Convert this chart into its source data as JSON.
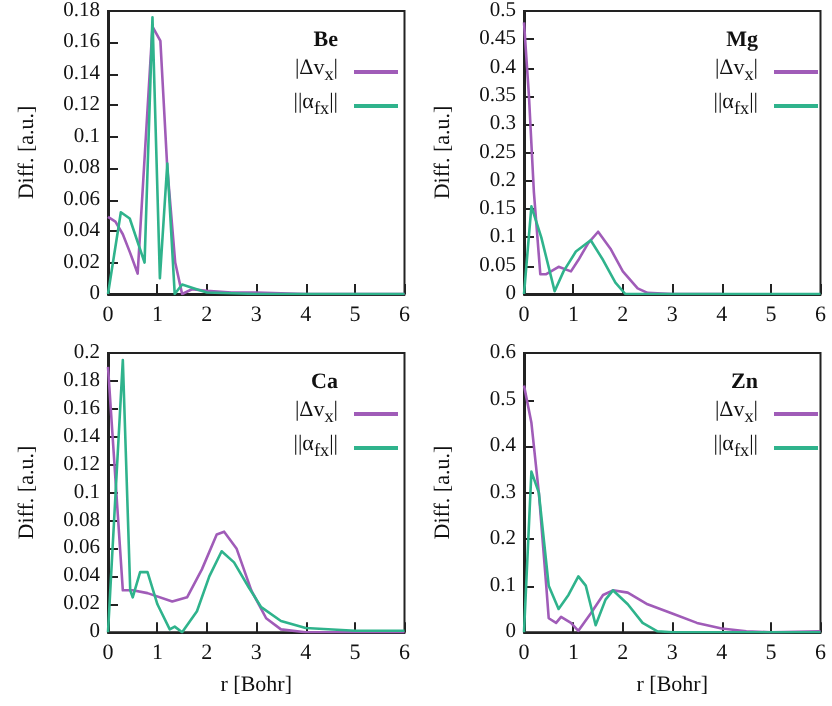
{
  "chart_data": [
    {
      "type": "line",
      "legend_title": "Be",
      "ylabel": "Diff. [a.u.]",
      "xlim": [
        0,
        6
      ],
      "xticks": [
        0,
        1,
        2,
        3,
        4,
        5,
        6
      ],
      "ylim": [
        0,
        0.18
      ],
      "yticks": [
        0,
        0.02,
        0.04,
        0.06,
        0.08,
        0.1,
        0.12,
        0.14,
        0.16,
        0.18
      ],
      "legend": "top right",
      "marker": "none",
      "series": [
        {
          "name": "|Δv$_{x}$|",
          "color": "#a05cb8",
          "x": [
            0,
            0.15,
            0.3,
            0.45,
            0.6,
            0.9,
            1.06,
            1.2,
            1.36,
            1.5,
            1.7,
            2,
            2.5,
            3,
            4,
            5,
            6
          ],
          "values": [
            0.049,
            0.046,
            0.038,
            0.026,
            0.013,
            0.17,
            0.161,
            0.08,
            0.02,
            0,
            0.003,
            0.002,
            0.001,
            0.001,
            0,
            0,
            0
          ]
        },
        {
          "name": "||α$_{fx}$||",
          "color": "#2fb38c",
          "x": [
            0,
            0.26,
            0.44,
            0.74,
            0.9,
            1.05,
            1.2,
            1.35,
            1.5,
            1.7,
            2,
            3,
            4,
            5,
            6
          ],
          "values": [
            0,
            0.052,
            0.048,
            0.02,
            0.176,
            0.01,
            0.083,
            0,
            0.006,
            0.004,
            0.001,
            0,
            0,
            0,
            0
          ]
        }
      ]
    },
    {
      "type": "line",
      "legend_title": "Mg",
      "ylabel": "Diff. [a.u.]",
      "xlim": [
        0,
        6
      ],
      "xticks": [
        0,
        1,
        2,
        3,
        4,
        5,
        6
      ],
      "ylim": [
        0,
        0.5
      ],
      "yticks": [
        0,
        0.05,
        0.1,
        0.15,
        0.2,
        0.25,
        0.3,
        0.35,
        0.4,
        0.45,
        0.5
      ],
      "legend": "top right",
      "marker": "none",
      "series": [
        {
          "name": "|Δv$_{x}$|",
          "color": "#a05cb8",
          "x": [
            0,
            0.1,
            0.2,
            0.33,
            0.45,
            0.7,
            0.95,
            1.1,
            1.3,
            1.5,
            1.75,
            2,
            2.3,
            2.5,
            3,
            4
          ],
          "values": [
            0.48,
            0.35,
            0.18,
            0.035,
            0.035,
            0.048,
            0.04,
            0.06,
            0.09,
            0.11,
            0.08,
            0.04,
            0.01,
            0.002,
            0,
            0
          ]
        },
        {
          "name": "||α$_{fx}$||",
          "color": "#2fb38c",
          "x": [
            0,
            0.15,
            0.35,
            0.62,
            0.8,
            1.05,
            1.35,
            1.6,
            1.85,
            2.05,
            3,
            4,
            5,
            6
          ],
          "values": [
            0,
            0.155,
            0.1,
            0.005,
            0.04,
            0.075,
            0.095,
            0.06,
            0.02,
            0,
            0,
            0,
            0,
            0
          ]
        }
      ]
    },
    {
      "type": "line",
      "legend_title": "Ca",
      "xlabel": "r [Bohr]",
      "ylabel": "Diff. [a.u.]",
      "xlim": [
        0,
        6
      ],
      "xticks": [
        0,
        1,
        2,
        3,
        4,
        5,
        6
      ],
      "ylim": [
        0,
        0.2
      ],
      "yticks": [
        0,
        0.02,
        0.04,
        0.06,
        0.08,
        0.1,
        0.12,
        0.14,
        0.16,
        0.18,
        0.2
      ],
      "legend": "top right",
      "marker": "none",
      "series": [
        {
          "name": "|Δv$_{x}$|",
          "color": "#a05cb8",
          "x": [
            0,
            0.3,
            0.5,
            0.8,
            1.3,
            1.6,
            1.9,
            2.2,
            2.35,
            2.6,
            2.9,
            3.2,
            3.5,
            4,
            5,
            6
          ],
          "values": [
            0.19,
            0.03,
            0.03,
            0.028,
            0.022,
            0.025,
            0.045,
            0.07,
            0.072,
            0.06,
            0.03,
            0.01,
            0.002,
            0,
            0,
            0
          ]
        },
        {
          "name": "||α$_{fx}$||",
          "color": "#2fb38c",
          "x": [
            0,
            0.3,
            0.45,
            0.5,
            0.65,
            0.8,
            1,
            1.25,
            1.35,
            1.5,
            1.8,
            2.05,
            2.3,
            2.55,
            2.85,
            3.1,
            3.5,
            4,
            5,
            6
          ],
          "values": [
            0,
            0.195,
            0.03,
            0.025,
            0.043,
            0.043,
            0.02,
            0.002,
            0.004,
            0,
            0.015,
            0.04,
            0.058,
            0.05,
            0.032,
            0.018,
            0.008,
            0.003,
            0.001,
            0.001
          ]
        }
      ]
    },
    {
      "type": "line",
      "legend_title": "Zn",
      "xlabel": "r [Bohr]",
      "ylabel": "Diff. [a.u.]",
      "xlim": [
        0,
        6
      ],
      "xticks": [
        0,
        1,
        2,
        3,
        4,
        5,
        6
      ],
      "ylim": [
        0,
        0.6
      ],
      "yticks": [
        0,
        0.1,
        0.2,
        0.3,
        0.4,
        0.5,
        0.6
      ],
      "legend": "top right",
      "marker": "none",
      "series": [
        {
          "name": "|Δv$_{x}$|",
          "color": "#a05cb8",
          "x": [
            0,
            0.15,
            0.3,
            0.45,
            0.5,
            0.65,
            0.75,
            0.95,
            1.1,
            1.35,
            1.6,
            1.8,
            2.1,
            2.5,
            3,
            3.5,
            4,
            4.5,
            5,
            6
          ],
          "values": [
            0.53,
            0.45,
            0.3,
            0.1,
            0.03,
            0.02,
            0.033,
            0.02,
            0.003,
            0.04,
            0.08,
            0.09,
            0.085,
            0.06,
            0.04,
            0.02,
            0.008,
            0.002,
            0,
            0.002
          ]
        },
        {
          "name": "||α$_{fx}$||",
          "color": "#2fb38c",
          "x": [
            0,
            0.15,
            0.3,
            0.5,
            0.7,
            0.9,
            1.1,
            1.25,
            1.45,
            1.65,
            1.8,
            2.1,
            2.4,
            2.7,
            3,
            4,
            5,
            6
          ],
          "values": [
            0,
            0.345,
            0.3,
            0.1,
            0.05,
            0.08,
            0.12,
            0.1,
            0.015,
            0.07,
            0.09,
            0.06,
            0.02,
            0.002,
            0,
            0,
            0,
            0
          ]
        }
      ]
    }
  ]
}
